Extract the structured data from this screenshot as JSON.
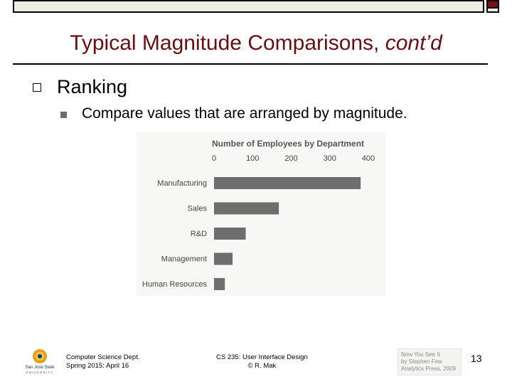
{
  "slide": {
    "title_main": "Typical Magnitude Comparisons, ",
    "title_italic": "cont’d",
    "bullet_1": "Ranking",
    "bullet_2": "Compare values that are arranged by magnitude.",
    "page_number": "13"
  },
  "footer": {
    "left_line1": "Computer Science Dept.",
    "left_line2": "Spring 2015: April 16",
    "center_line1": "CS 235: User Interface Design",
    "center_line2": "© R. Mak",
    "credit_line1": "Now You See It",
    "credit_line2": "by Stephen Few",
    "credit_line3": "Analytics Press, 2009"
  },
  "logo": {
    "line1": "San José State",
    "line2": "UNIVERSITY"
  },
  "chart_data": {
    "type": "bar",
    "orientation": "horizontal",
    "title": "Number of Employees by Department",
    "categories": [
      "Manufacturing",
      "Sales",
      "R&D",
      "Management",
      "Human Resources"
    ],
    "values": [
      380,
      168,
      82,
      48,
      28
    ],
    "xlim": [
      0,
      400
    ],
    "x_ticks": [
      "0",
      "100",
      "200",
      "300",
      "400"
    ],
    "grid": false,
    "bar_color": "#6e6e6e"
  },
  "colors": {
    "title": "#6b0d12",
    "accent_bar": "#7a0f14",
    "top_bar": "#eeede2"
  }
}
